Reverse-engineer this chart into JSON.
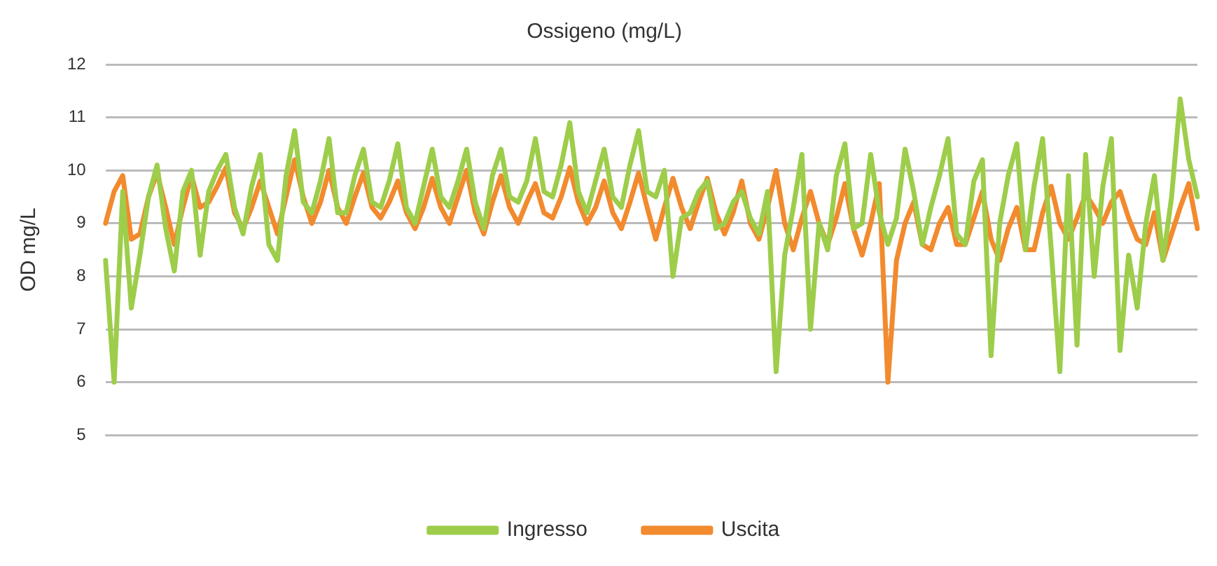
{
  "chart_data": {
    "type": "line",
    "title": "Ossigeno (mg/L)",
    "ylabel": "OD mg/L",
    "categories": [
      null,
      null,
      null,
      null,
      null,
      null,
      null,
      null,
      null,
      null,
      null,
      null,
      null,
      null,
      null,
      null,
      null,
      null,
      null,
      null,
      null,
      null,
      null,
      null,
      null,
      null,
      null,
      null,
      null,
      null,
      null,
      null,
      null,
      null,
      null,
      null,
      null,
      null,
      null,
      null,
      null,
      null,
      null,
      null,
      null,
      null,
      null,
      null,
      null,
      null,
      null,
      null,
      null,
      null,
      null,
      null,
      null,
      null,
      null,
      null,
      null,
      null,
      null,
      null,
      null,
      null,
      null,
      null,
      null,
      null,
      null,
      null,
      null,
      null,
      null,
      null,
      null,
      null,
      null,
      null,
      null,
      null,
      null,
      null,
      null,
      null,
      null,
      null,
      null,
      null,
      null,
      null,
      null,
      null,
      null,
      null,
      null,
      null,
      null,
      null,
      null,
      null,
      null,
      null,
      null,
      null,
      null,
      null,
      null,
      null,
      null,
      null,
      null,
      null,
      null,
      null,
      null,
      null,
      null,
      null,
      null,
      null,
      null,
      null,
      null,
      null,
      null,
      null
    ],
    "series": [
      {
        "name": "Ingresso",
        "color": "#9dcd4a",
        "values": [
          8.3,
          6.0,
          9.6,
          7.4,
          8.4,
          9.5,
          10.1,
          8.9,
          8.1,
          9.6,
          10.0,
          8.4,
          9.6,
          10.0,
          10.3,
          9.3,
          8.8,
          9.7,
          10.3,
          8.6,
          8.3,
          9.9,
          10.75,
          9.4,
          9.2,
          9.8,
          10.6,
          9.2,
          9.2,
          9.9,
          10.4,
          9.4,
          9.3,
          9.8,
          10.5,
          9.3,
          9.0,
          9.7,
          10.4,
          9.5,
          9.3,
          9.8,
          10.4,
          9.4,
          8.9,
          9.9,
          10.4,
          9.5,
          9.4,
          9.8,
          10.6,
          9.6,
          9.5,
          10.1,
          10.9,
          9.6,
          9.2,
          9.8,
          10.4,
          9.5,
          9.3,
          10.1,
          10.75,
          9.6,
          9.5,
          10.0,
          8.0,
          9.1,
          9.2,
          9.6,
          9.8,
          8.9,
          9.0,
          9.4,
          9.6,
          9.1,
          8.8,
          9.6,
          6.2,
          8.4,
          9.3,
          10.3,
          7.0,
          9.0,
          8.5,
          9.9,
          10.5,
          8.9,
          9.0,
          10.3,
          9.2,
          8.6,
          9.1,
          10.4,
          9.6,
          8.6,
          9.3,
          9.9,
          10.6,
          8.8,
          8.6,
          9.8,
          10.2,
          6.5,
          9.0,
          9.9,
          10.5,
          8.5,
          9.7,
          10.6,
          8.5,
          6.2,
          9.9,
          6.7,
          10.3,
          8.0,
          9.7,
          10.6,
          6.6,
          8.4,
          7.4,
          9.0,
          9.9,
          8.3,
          9.5,
          11.35,
          10.2,
          9.5
        ]
      },
      {
        "name": "Uscita",
        "color": "#f28a2e",
        "values": [
          9.0,
          9.6,
          9.9,
          8.7,
          8.8,
          9.5,
          9.95,
          9.3,
          8.6,
          9.3,
          9.9,
          9.3,
          9.4,
          9.7,
          10.05,
          9.2,
          8.9,
          9.3,
          9.8,
          9.3,
          8.8,
          9.5,
          10.2,
          9.5,
          9.0,
          9.4,
          10.0,
          9.3,
          9.0,
          9.5,
          9.95,
          9.3,
          9.1,
          9.4,
          9.8,
          9.2,
          8.9,
          9.3,
          9.85,
          9.3,
          9.0,
          9.5,
          10.0,
          9.2,
          8.8,
          9.4,
          9.9,
          9.3,
          9.0,
          9.4,
          9.75,
          9.2,
          9.1,
          9.5,
          10.05,
          9.4,
          9.0,
          9.3,
          9.8,
          9.2,
          8.9,
          9.4,
          9.95,
          9.3,
          8.7,
          9.3,
          9.85,
          9.3,
          8.9,
          9.4,
          9.85,
          9.2,
          8.8,
          9.2,
          9.8,
          9.0,
          8.7,
          9.3,
          10.0,
          9.0,
          8.5,
          9.1,
          9.6,
          9.0,
          8.6,
          9.1,
          9.75,
          8.9,
          8.4,
          9.0,
          9.75,
          6.0,
          8.3,
          9.0,
          9.4,
          8.6,
          8.5,
          9.0,
          9.3,
          8.6,
          8.6,
          9.1,
          9.6,
          8.7,
          8.3,
          8.9,
          9.3,
          8.5,
          8.5,
          9.2,
          9.7,
          9.0,
          8.7,
          9.1,
          9.55,
          9.3,
          9.0,
          9.4,
          9.6,
          9.1,
          8.7,
          8.6,
          9.2,
          8.3,
          8.8,
          9.3,
          9.75,
          8.9
        ]
      }
    ],
    "ylim": [
      5,
      12
    ],
    "yticks": [
      5,
      6,
      7,
      8,
      9,
      10,
      11,
      12
    ],
    "grid": "y",
    "legend": "bottom",
    "marker": "none",
    "line_style": "solid"
  }
}
